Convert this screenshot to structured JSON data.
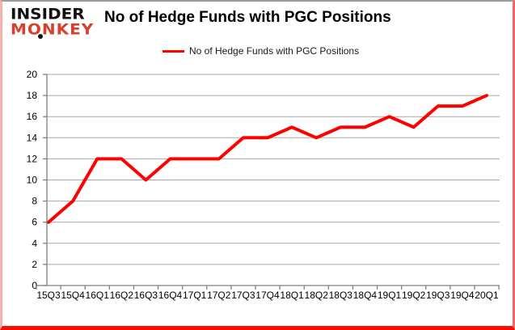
{
  "logo": {
    "line1": "INSIDER",
    "line2": "MONKEY"
  },
  "header": {
    "title": "No of Hedge Funds with PGC Positions"
  },
  "legend": {
    "label": "No of Hedge Funds with PGC Positions"
  },
  "chart_data": {
    "type": "line",
    "title": "No of Hedge Funds with PGC Positions",
    "categories": [
      "15Q3",
      "15Q4",
      "16Q1",
      "16Q2",
      "16Q3",
      "16Q4",
      "17Q1",
      "17Q2",
      "17Q3",
      "17Q4",
      "18Q1",
      "18Q2",
      "18Q3",
      "18Q4",
      "19Q1",
      "19Q2",
      "19Q3",
      "19Q4",
      "20Q1"
    ],
    "series": [
      {
        "name": "No of Hedge Funds with PGC Positions",
        "color": "#ff0000",
        "values": [
          6,
          8,
          12,
          12,
          10,
          12,
          12,
          12,
          14,
          14,
          15,
          14,
          15,
          15,
          16,
          15,
          17,
          17,
          18
        ]
      }
    ],
    "xlabel": "",
    "ylabel": "",
    "ylim": [
      0,
      20
    ],
    "ytick_step": 2,
    "yticks": [
      0,
      2,
      4,
      6,
      8,
      10,
      12,
      14,
      16,
      18,
      20
    ],
    "grid": true,
    "legend_position": "top-center"
  },
  "colors": {
    "series_line": "#ff0000",
    "grid": "#a8a8a8",
    "axis": "#808080",
    "tick_text": "#000000",
    "logo_black": "#111111",
    "logo_red": "#d8402c",
    "frame_red": "#fb0b00",
    "background": "#ffffff"
  }
}
